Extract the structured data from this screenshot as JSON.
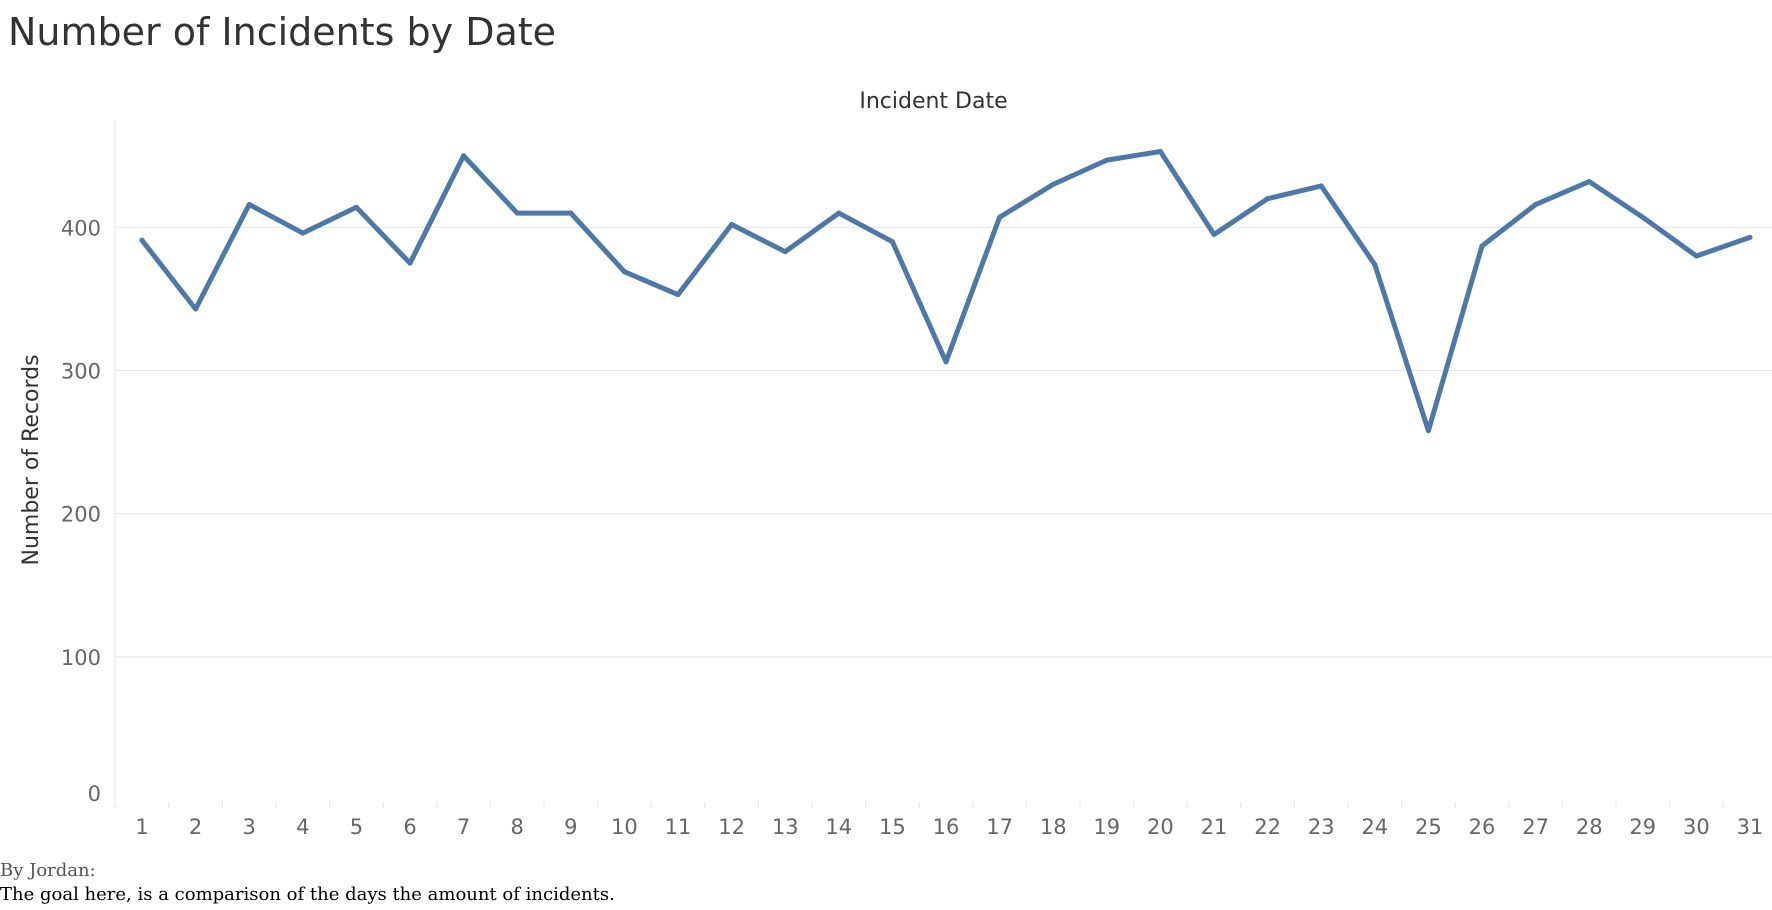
{
  "chart_data": {
    "type": "line",
    "title": "Number of Incidents by Date",
    "xlabel": "Incident Date",
    "ylabel": "Number of Records",
    "ylim": [
      0,
      475
    ],
    "yticks": [
      0,
      100,
      200,
      300,
      400
    ],
    "grid": true,
    "color": "#4e79a7",
    "categories": [
      "1",
      "2",
      "3",
      "4",
      "5",
      "6",
      "7",
      "8",
      "9",
      "10",
      "11",
      "12",
      "13",
      "14",
      "15",
      "16",
      "17",
      "18",
      "19",
      "20",
      "21",
      "22",
      "23",
      "24",
      "25",
      "26",
      "27",
      "28",
      "29",
      "30",
      "31"
    ],
    "values": [
      391,
      343,
      416,
      396,
      414,
      375,
      450,
      410,
      410,
      369,
      353,
      402,
      383,
      410,
      390,
      306,
      407,
      430,
      447,
      453,
      395,
      420,
      429,
      374,
      258,
      387,
      416,
      432,
      407,
      380,
      393
    ]
  },
  "footer": {
    "author": "By Jordan:",
    "note": "The goal here, is a comparison of the days the amount of incidents."
  }
}
